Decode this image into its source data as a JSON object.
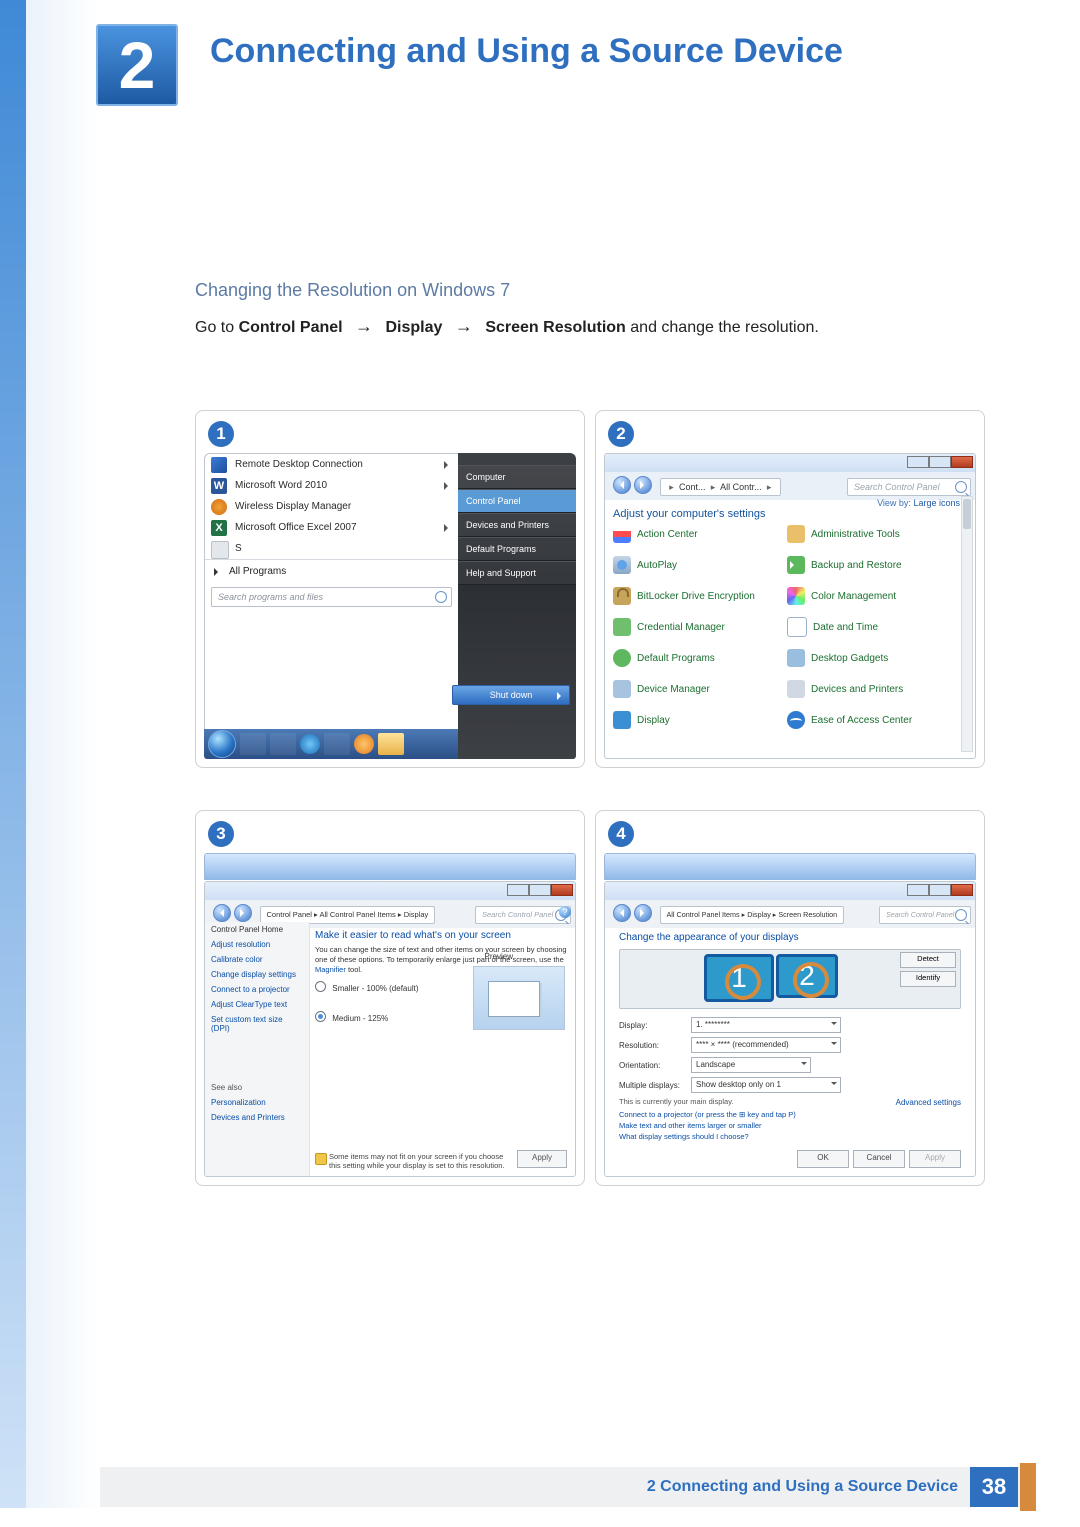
{
  "colors": {
    "accent_blue": "#2e6fbf",
    "accent_orange": "#d58a3e",
    "link_blue": "#0a4ea6",
    "cp_item_green": "#1c6f30",
    "window_grad_top": "#d5e8ff",
    "window_grad_bot": "#8fb8e8"
  },
  "chapter": {
    "number": "2",
    "title": "Connecting and Using a Source Device"
  },
  "subheading": "Changing the Resolution on Windows 7",
  "instruction": {
    "lead": "Go to ",
    "b1": "Control Panel",
    "b2": "Display",
    "b3": "Screen Resolution",
    "tail": " and change the resolution."
  },
  "steps": {
    "s1": "1",
    "s2": "2",
    "s3": "3",
    "s4": "4"
  },
  "fig1": {
    "programs": [
      {
        "icon": "rdc",
        "label": "Remote Desktop Connection",
        "caret": true
      },
      {
        "icon": "word",
        "label": "Microsoft Word 2010",
        "caret": true
      },
      {
        "icon": "wdm",
        "label": "Wireless Display Manager",
        "caret": false
      },
      {
        "icon": "excel",
        "label": "Microsoft Office Excel 2007",
        "caret": true
      },
      {
        "icon": "generic",
        "label": "S",
        "caret": false
      }
    ],
    "all_programs": "All Programs",
    "search_placeholder": "Search programs and files",
    "jump": {
      "computer": "Computer",
      "control_panel": "Control Panel",
      "devices_printers": "Devices and Printers",
      "default_programs": "Default Programs",
      "help_support": "Help and Support"
    },
    "shutdown": "Shut down"
  },
  "fig2": {
    "breadcrumb": {
      "a": "Cont...",
      "b": "All Contr...",
      "dd": "▸"
    },
    "search_placeholder": "Search Control Panel",
    "heading": "Adjust your computer's settings",
    "viewby_label": "View by:",
    "viewby_value": "Large icons ▾",
    "items_left": [
      "Action Center",
      "AutoPlay",
      "BitLocker Drive Encryption",
      "Credential Manager",
      "Default Programs",
      "Device Manager",
      "Display"
    ],
    "items_right": [
      "Administrative Tools",
      "Backup and Restore",
      "Color Management",
      "Date and Time",
      "Desktop Gadgets",
      "Devices and Printers",
      "Ease of Access Center"
    ],
    "icons_left": [
      "ci-flag",
      "ci-autoplay",
      "ci-lock",
      "ci-cred",
      "ci-def",
      "ci-dev",
      "ci-disp"
    ],
    "icons_right": [
      "ci-admin",
      "ci-backup",
      "ci-color",
      "ci-date",
      "ci-gadget",
      "ci-print",
      "ci-ease"
    ]
  },
  "fig3": {
    "breadcrumb": "Control Panel  ▸  All Control Panel Items  ▸  Display",
    "search_placeholder": "Search Control Panel",
    "side": {
      "home": "Control Panel Home",
      "links": [
        "Adjust resolution",
        "Calibrate color",
        "Change display settings",
        "Connect to a projector",
        "Adjust ClearType text",
        "Set custom text size (DPI)"
      ],
      "seealso": "See also",
      "seealso_links": [
        "Personalization",
        "Devices and Printers"
      ]
    },
    "heading": "Make it easier to read what's on your screen",
    "desc_a": "You can change the size of text and other items on your screen by choosing one of these options. To temporarily enlarge just part of the screen, use the ",
    "desc_link": "Magnifier",
    "desc_b": " tool.",
    "opt_small_label": "Smaller - 100% (default)",
    "opt_med_label": "Medium - 125%",
    "preview_label": "Preview",
    "warning": "Some items may not fit on your screen if you choose this setting while your display is set to this resolution.",
    "apply": "Apply"
  },
  "fig4": {
    "breadcrumb": "All Control Panel Items  ▸  Display  ▸  Screen Resolution",
    "search_placeholder": "Search Control Panel",
    "heading": "Change the appearance of your displays",
    "detect": "Detect",
    "identify": "Identify",
    "monitors": {
      "m1": "1",
      "m2": "2"
    },
    "rows": {
      "display": {
        "label": "Display:",
        "value": "1. ********"
      },
      "resolution": {
        "label": "Resolution:",
        "value": "**** × **** (recommended)"
      },
      "orientation": {
        "label": "Orientation:",
        "value": "Landscape"
      },
      "multiple": {
        "label": "Multiple displays:",
        "value": "Show desktop only on 1"
      }
    },
    "main_note": "This is currently your main display.",
    "advanced": "Advanced settings",
    "links": [
      "Connect to a projector (or press the ⊞ key and tap P)",
      "Make text and other items larger or smaller",
      "What display settings should I choose?"
    ],
    "buttons": {
      "ok": "OK",
      "cancel": "Cancel",
      "apply": "Apply"
    }
  },
  "footer": {
    "text": "2 Connecting and Using a Source Device",
    "page": "38"
  }
}
